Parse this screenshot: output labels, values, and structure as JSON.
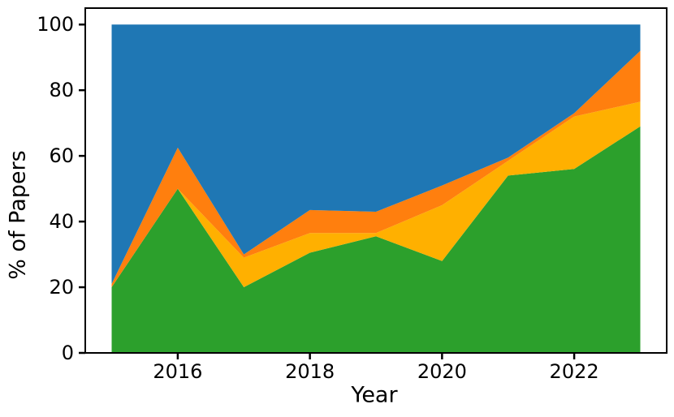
{
  "chart_data": {
    "type": "area",
    "stacked": true,
    "title": "",
    "xlabel": "Year",
    "ylabel": "% of Papers",
    "x": [
      2015,
      2016,
      2017,
      2018,
      2019,
      2020,
      2021,
      2022,
      2023
    ],
    "series": [
      {
        "name": "green",
        "color": "#2ca02c",
        "values": [
          20,
          50,
          20,
          30.5,
          35.5,
          28,
          54,
          56,
          69
        ]
      },
      {
        "name": "gold",
        "color": "#ffb000",
        "values": [
          0,
          0,
          9,
          6,
          1,
          17,
          4.5,
          16,
          7.5
        ]
      },
      {
        "name": "orange",
        "color": "#ff7f0e",
        "values": [
          1,
          12.5,
          1,
          7,
          6.5,
          6,
          1,
          1,
          15.5
        ]
      },
      {
        "name": "blue",
        "color": "#1f77b4",
        "values": [
          79,
          37.5,
          70,
          56.5,
          57,
          49,
          40.5,
          27,
          8
        ]
      }
    ],
    "xlim": [
      2014.6,
      2023.4
    ],
    "ylim": [
      0,
      105
    ],
    "x_ticks": [
      2016,
      2018,
      2020,
      2022
    ],
    "x_tick_labels": [
      "2016",
      "2018",
      "2020",
      "2022"
    ],
    "y_ticks": [
      0,
      20,
      40,
      60,
      80,
      100
    ],
    "y_tick_labels": [
      "0",
      "20",
      "40",
      "60",
      "80",
      "100"
    ],
    "grid": false,
    "legend": "none",
    "background_color": "#ffffff",
    "spine_color": "#000000",
    "tick_label_color": "#000000"
  }
}
